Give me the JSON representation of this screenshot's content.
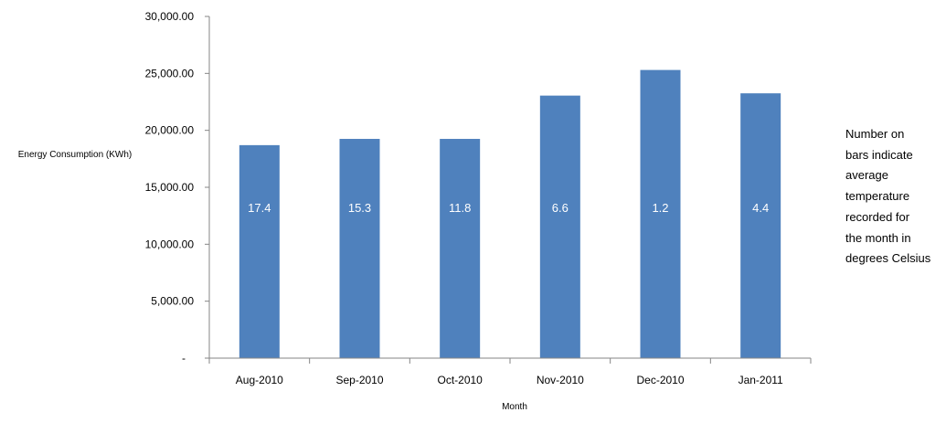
{
  "chart_data": {
    "type": "bar",
    "title": "",
    "xlabel": "Month",
    "ylabel": "Energy Consumption (KWh)",
    "categories": [
      "Aug-2010",
      "Sep-2010",
      "Oct-2010",
      "Nov-2010",
      "Dec-2010",
      "Jan-2011"
    ],
    "values": [
      18700,
      19250,
      19250,
      23050,
      25300,
      23250
    ],
    "bar_labels": [
      "17.4",
      "15.3",
      "11.8",
      "6.6",
      "1.2",
      "4.4"
    ],
    "ylim": [
      0,
      30000
    ],
    "yticks": [
      0,
      5000,
      10000,
      15000,
      20000,
      25000,
      30000
    ],
    "ytick_labels": [
      "-",
      "5,000.00",
      "10,000.00",
      "15,000.00",
      "20,000.00",
      "25,000.00",
      "30,000.00"
    ],
    "grid": false,
    "legend": "none",
    "bar_color": "#4f81bd",
    "annotation": "Number on\nbars indicate\naverage\ntemperature\nrecorded for\nthe month in\ndegrees Celsius"
  }
}
